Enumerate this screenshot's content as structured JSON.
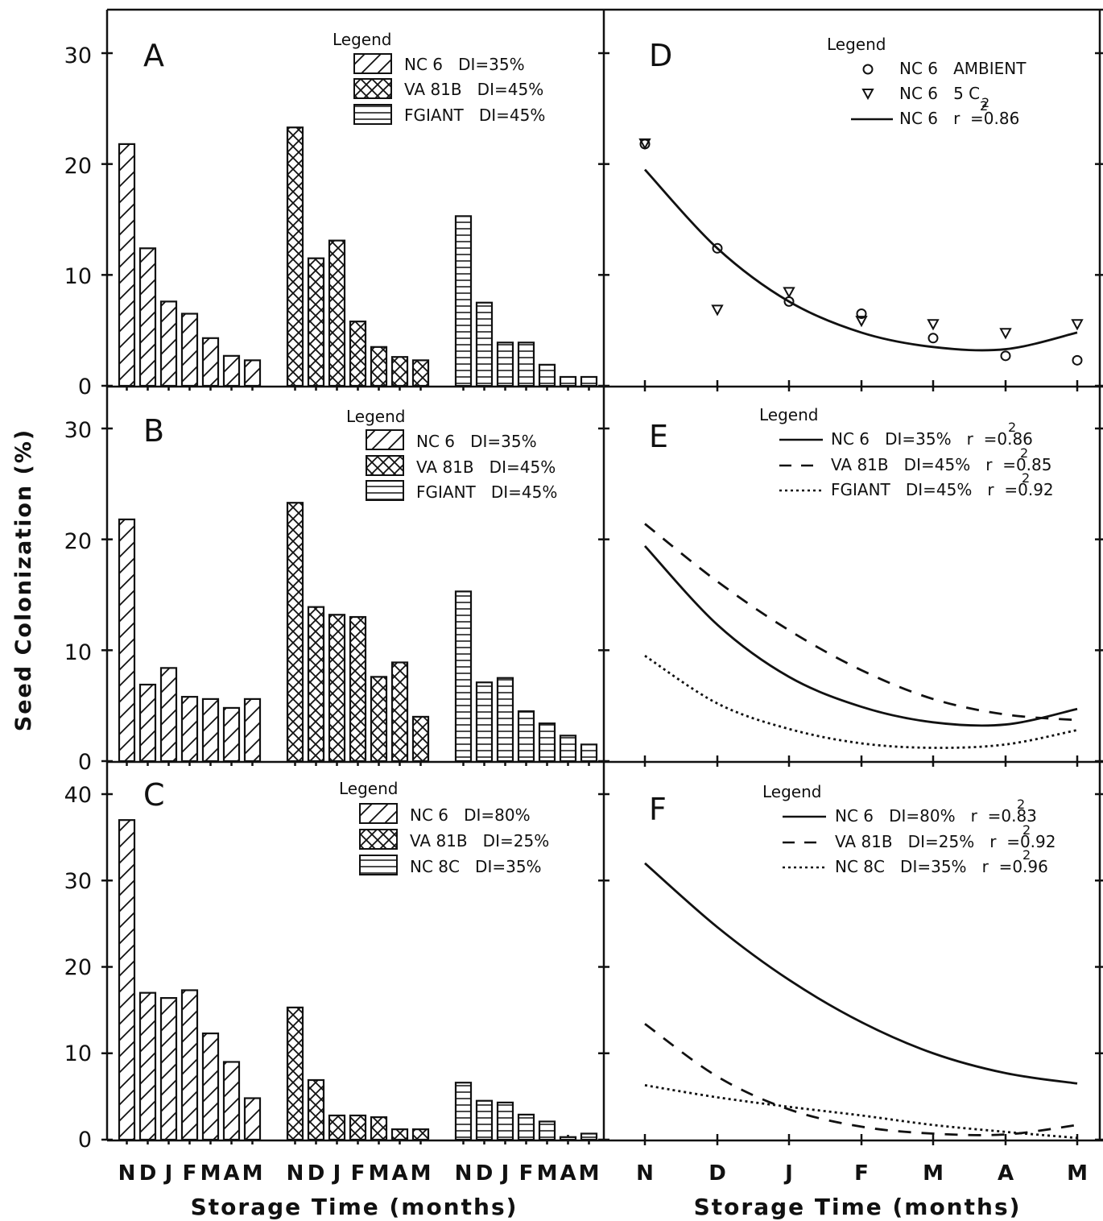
{
  "figure": {
    "y_axis_label": "Seed Colonization (%)",
    "x_axis_label_left": "Storage Time (months)",
    "x_axis_label_right": "Storage Time (months)",
    "month_letters": [
      "N",
      "D",
      "J",
      "F",
      "M",
      "A",
      "M"
    ]
  },
  "chart_data": [
    {
      "panel": "A",
      "type": "bar",
      "ylim": [
        0,
        30
      ],
      "yticks": [
        "0",
        "10",
        "20",
        "30"
      ],
      "legend_title": "Legend",
      "groups": [
        {
          "legend": "NC 6   DI=35%",
          "pattern": "diagonal",
          "values": [
            21.8,
            12.4,
            7.6,
            6.5,
            4.3,
            2.7,
            2.3
          ]
        },
        {
          "legend": "VA 81B   DI=45%",
          "pattern": "crosshatch",
          "values": [
            23.3,
            11.5,
            13.1,
            5.8,
            3.5,
            2.6,
            2.3
          ]
        },
        {
          "legend": "FGIANT   DI=45%",
          "pattern": "horizontal",
          "values": [
            15.3,
            7.5,
            3.9,
            3.9,
            1.9,
            0.8,
            0.8
          ]
        }
      ]
    },
    {
      "panel": "B",
      "type": "bar",
      "ylim": [
        0,
        30
      ],
      "yticks": [
        "0",
        "10",
        "20",
        "30"
      ],
      "legend_title": "Legend",
      "groups": [
        {
          "legend": "NC 6   DI=35%",
          "pattern": "diagonal",
          "values": [
            21.8,
            6.9,
            8.4,
            5.8,
            5.6,
            4.8,
            5.6
          ]
        },
        {
          "legend": "VA 81B   DI=45%",
          "pattern": "crosshatch",
          "values": [
            23.3,
            13.9,
            13.2,
            13.0,
            7.6,
            8.9,
            4.0
          ]
        },
        {
          "legend": "FGIANT   DI=45%",
          "pattern": "horizontal",
          "values": [
            15.3,
            7.1,
            7.5,
            4.5,
            3.4,
            2.3,
            1.5
          ]
        }
      ]
    },
    {
      "panel": "C",
      "type": "bar",
      "ylim": [
        0,
        40
      ],
      "yticks": [
        "0",
        "10",
        "20",
        "30",
        "40"
      ],
      "legend_title": "Legend",
      "groups": [
        {
          "legend": "NC 6   DI=80%",
          "pattern": "diagonal",
          "values": [
            37.0,
            17.0,
            16.4,
            17.3,
            12.3,
            9.0,
            4.8
          ]
        },
        {
          "legend": "VA 81B   DI=25%",
          "pattern": "crosshatch",
          "values": [
            15.3,
            6.9,
            2.8,
            2.8,
            2.6,
            1.2,
            1.2
          ]
        },
        {
          "legend": "NC 8C   DI=35%",
          "pattern": "horizontal",
          "values": [
            6.6,
            4.5,
            4.3,
            2.9,
            2.1,
            0.3,
            0.7
          ]
        }
      ]
    },
    {
      "panel": "D",
      "type": "scatter",
      "ylim": [
        0,
        30
      ],
      "x": [
        "N",
        "D",
        "J",
        "F",
        "M",
        "A",
        "M"
      ],
      "legend_title": "Legend",
      "legend": {
        "ambient": "NC 6   AMBIENT",
        "cold": "NC 6   5 C",
        "fit": "NC 6   r  =0.86",
        "fit_sup": "2",
        "cold_sub": "2"
      },
      "series": [
        {
          "marker": "circle",
          "values": [
            21.8,
            12.4,
            7.6,
            6.5,
            4.3,
            2.7,
            2.3
          ]
        },
        {
          "marker": "triangle",
          "values": [
            21.8,
            6.8,
            8.4,
            5.8,
            5.5,
            4.7,
            5.5
          ]
        },
        {
          "style": "solid",
          "values": [
            19.5,
            12.4,
            7.6,
            4.8,
            3.5,
            3.3,
            4.8
          ]
        }
      ]
    },
    {
      "panel": "E",
      "type": "line",
      "ylim": [
        0,
        30
      ],
      "x": [
        "N",
        "D",
        "J",
        "F",
        "M",
        "A",
        "M"
      ],
      "legend_title": "Legend",
      "legend_sup": "2",
      "series": [
        {
          "legend": "NC 6   DI=35%   r  =0.86",
          "style": "solid",
          "values": [
            19.4,
            12.3,
            7.6,
            4.9,
            3.5,
            3.3,
            4.7
          ]
        },
        {
          "legend": "VA 81B   DI=45%   r  =0.85",
          "style": "dashed",
          "values": [
            21.4,
            16.2,
            11.8,
            8.2,
            5.6,
            4.2,
            3.7
          ]
        },
        {
          "legend": "FGIANT   DI=45%   r  =0.92",
          "style": "dotted",
          "values": [
            9.5,
            5.2,
            2.9,
            1.6,
            1.2,
            1.5,
            2.8
          ]
        }
      ]
    },
    {
      "panel": "F",
      "type": "line",
      "ylim": [
        0,
        40
      ],
      "x": [
        "N",
        "D",
        "J",
        "F",
        "M",
        "A",
        "M"
      ],
      "legend_title": "Legend",
      "legend_sup": "2",
      "series": [
        {
          "legend": "NC 6   DI=80%   r  =0.83",
          "style": "solid",
          "values": [
            32.0,
            24.6,
            18.5,
            13.6,
            10.0,
            7.7,
            6.5
          ]
        },
        {
          "legend": "VA 81B   DI=25%   r  =0.92",
          "style": "dashed",
          "values": [
            13.4,
            7.3,
            3.5,
            1.5,
            0.7,
            0.6,
            1.7
          ]
        },
        {
          "legend": "NC 8C   DI=35%   r  =0.96",
          "style": "dotted",
          "values": [
            6.3,
            4.9,
            3.8,
            2.8,
            1.7,
            0.9,
            0.2
          ]
        }
      ]
    }
  ]
}
